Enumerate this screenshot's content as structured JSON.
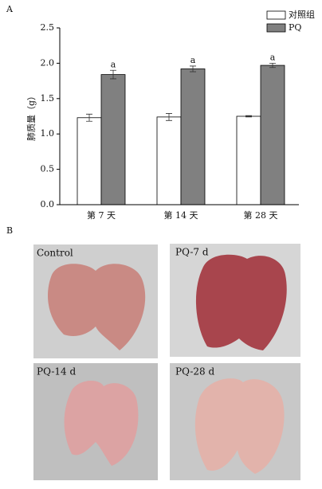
{
  "panel_labels": [
    "A",
    "B"
  ],
  "chart_data": {
    "type": "bar",
    "y_label": "肺质量（g）",
    "categories": [
      "第 7 天",
      "第 14 天",
      "第 28 天"
    ],
    "series": [
      {
        "name": "对照组",
        "color": "#ffffff",
        "values": [
          1.23,
          1.24,
          1.25
        ],
        "errors": [
          0.05,
          0.05,
          0.01
        ]
      },
      {
        "name": "PQ",
        "color": "#808080",
        "values": [
          1.84,
          1.92,
          1.97
        ],
        "errors": [
          0.06,
          0.04,
          0.03
        ],
        "significance_labels": [
          "a",
          "a",
          "a"
        ]
      }
    ],
    "ylim": [
      0,
      2.5
    ],
    "yticks": [
      {
        "value": 0,
        "label": "0.0"
      },
      0.5,
      {
        "value": 1,
        "label": "1.0"
      },
      1.5,
      {
        "value": 2,
        "label": "2.0"
      },
      2.5
    ],
    "legend": "top-right"
  },
  "photos": [
    {
      "label": "Control"
    },
    {
      "label": "PQ-7 d"
    },
    {
      "label": "PQ-14 d"
    },
    {
      "label": "PQ-28 d"
    }
  ]
}
